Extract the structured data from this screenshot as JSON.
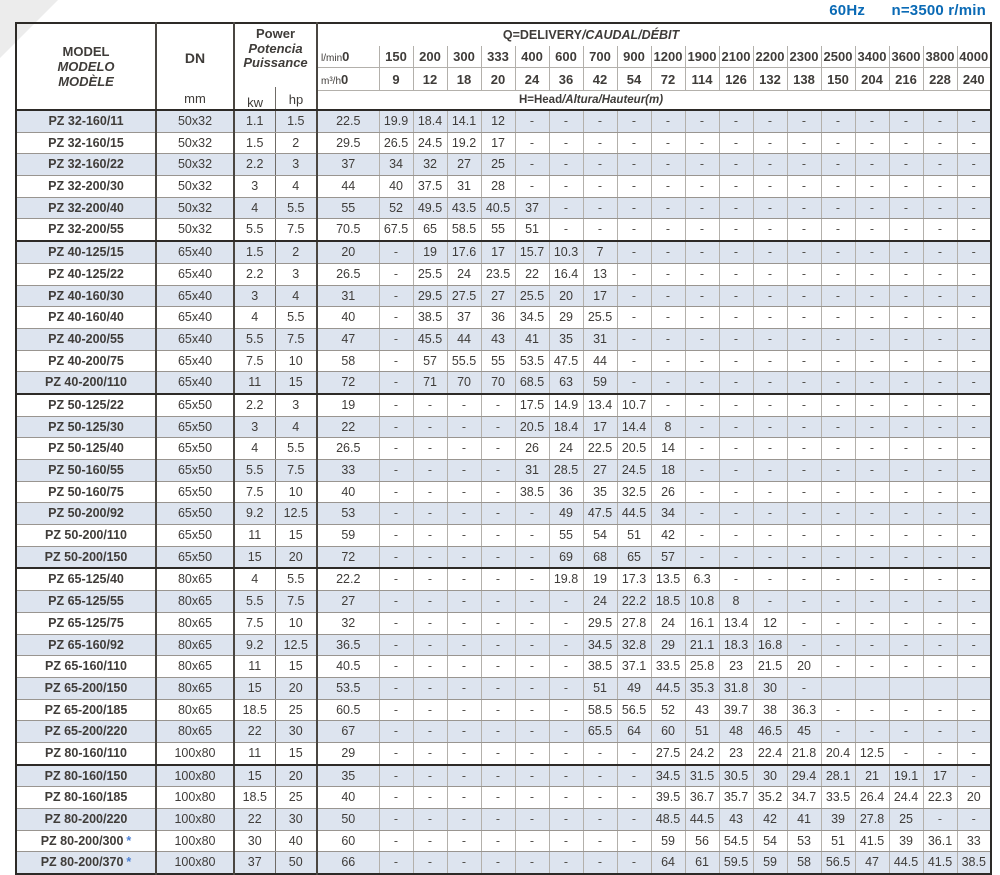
{
  "page": {
    "hz_label": "60Hz",
    "speed_label": "n=3500 r/min"
  },
  "table": {
    "model_header": [
      "MODEL",
      "MODELO",
      "MODÈLE"
    ],
    "dn_header": "DN",
    "dn_unit": "mm",
    "power_header": [
      "Power",
      "Potencia",
      "Puissance"
    ],
    "kw_label": "kw",
    "hp_label": "hp",
    "q_title": "Q=DELIVERY",
    "q_title_italic": "/CAUDAL/DÉBIT",
    "lmin_label": "l/min",
    "m3h_label": "m³/h",
    "lmin_values": [
      "0",
      "150",
      "200",
      "300",
      "333",
      "400",
      "600",
      "700",
      "900",
      "1200",
      "1900",
      "2100",
      "2200",
      "2300",
      "2500",
      "3400",
      "3600",
      "3800",
      "4000"
    ],
    "m3h_values": [
      "0",
      "9",
      "12",
      "18",
      "20",
      "24",
      "36",
      "42",
      "54",
      "72",
      "114",
      "126",
      "132",
      "138",
      "150",
      "204",
      "216",
      "228",
      "240"
    ],
    "head_title": "H=Head",
    "head_title_italic": "/Altura/Hauteur(m)",
    "group_ends": [
      5,
      12,
      20,
      29
    ],
    "rows": [
      {
        "model": "PZ 32-160/11",
        "star": false,
        "dn": "50x32",
        "kw": "1.1",
        "hp": "1.5",
        "heads": [
          "22.5",
          "19.9",
          "18.4",
          "14.1",
          "12",
          "-",
          "-",
          "-",
          "-",
          "-",
          "-",
          "-",
          "-",
          "-",
          "-",
          "-",
          "-",
          "-",
          "-"
        ]
      },
      {
        "model": "PZ 32-160/15",
        "star": false,
        "dn": "50x32",
        "kw": "1.5",
        "hp": "2",
        "heads": [
          "29.5",
          "26.5",
          "24.5",
          "19.2",
          "17",
          "-",
          "-",
          "-",
          "-",
          "-",
          "-",
          "-",
          "-",
          "-",
          "-",
          "-",
          "-",
          "-",
          "-"
        ]
      },
      {
        "model": "PZ 32-160/22",
        "star": false,
        "dn": "50x32",
        "kw": "2.2",
        "hp": "3",
        "heads": [
          "37",
          "34",
          "32",
          "27",
          "25",
          "-",
          "-",
          "-",
          "-",
          "-",
          "-",
          "-",
          "-",
          "-",
          "-",
          "-",
          "-",
          "-",
          "-"
        ]
      },
      {
        "model": "PZ 32-200/30",
        "star": false,
        "dn": "50x32",
        "kw": "3",
        "hp": "4",
        "heads": [
          "44",
          "40",
          "37.5",
          "31",
          "28",
          "-",
          "-",
          "-",
          "-",
          "-",
          "-",
          "-",
          "-",
          "-",
          "-",
          "-",
          "-",
          "-",
          "-"
        ]
      },
      {
        "model": "PZ 32-200/40",
        "star": false,
        "dn": "50x32",
        "kw": "4",
        "hp": "5.5",
        "heads": [
          "55",
          "52",
          "49.5",
          "43.5",
          "40.5",
          "37",
          "-",
          "-",
          "-",
          "-",
          "-",
          "-",
          "-",
          "-",
          "-",
          "-",
          "-",
          "-",
          "-"
        ]
      },
      {
        "model": "PZ 32-200/55",
        "star": false,
        "dn": "50x32",
        "kw": "5.5",
        "hp": "7.5",
        "heads": [
          "70.5",
          "67.5",
          "65",
          "58.5",
          "55",
          "51",
          "-",
          "-",
          "-",
          "-",
          "-",
          "-",
          "-",
          "-",
          "-",
          "-",
          "-",
          "-",
          "-"
        ]
      },
      {
        "model": "PZ 40-125/15",
        "star": false,
        "dn": "65x40",
        "kw": "1.5",
        "hp": "2",
        "heads": [
          "20",
          "-",
          "19",
          "17.6",
          "17",
          "15.7",
          "10.3",
          "7",
          "-",
          "-",
          "-",
          "-",
          "-",
          "-",
          "-",
          "-",
          "-",
          "-",
          "-"
        ]
      },
      {
        "model": "PZ 40-125/22",
        "star": false,
        "dn": "65x40",
        "kw": "2.2",
        "hp": "3",
        "heads": [
          "26.5",
          "-",
          "25.5",
          "24",
          "23.5",
          "22",
          "16.4",
          "13",
          "-",
          "-",
          "-",
          "-",
          "-",
          "-",
          "-",
          "-",
          "-",
          "-",
          "-"
        ]
      },
      {
        "model": "PZ 40-160/30",
        "star": false,
        "dn": "65x40",
        "kw": "3",
        "hp": "4",
        "heads": [
          "31",
          "-",
          "29.5",
          "27.5",
          "27",
          "25.5",
          "20",
          "17",
          "-",
          "-",
          "-",
          "-",
          "-",
          "-",
          "-",
          "-",
          "-",
          "-",
          "-"
        ]
      },
      {
        "model": "PZ 40-160/40",
        "star": false,
        "dn": "65x40",
        "kw": "4",
        "hp": "5.5",
        "heads": [
          "40",
          "-",
          "38.5",
          "37",
          "36",
          "34.5",
          "29",
          "25.5",
          "-",
          "-",
          "-",
          "-",
          "-",
          "-",
          "-",
          "-",
          "-",
          "-",
          "-"
        ]
      },
      {
        "model": "PZ 40-200/55",
        "star": false,
        "dn": "65x40",
        "kw": "5.5",
        "hp": "7.5",
        "heads": [
          "47",
          "-",
          "45.5",
          "44",
          "43",
          "41",
          "35",
          "31",
          "-",
          "-",
          "-",
          "-",
          "-",
          "-",
          "-",
          "-",
          "-",
          "-",
          "-"
        ]
      },
      {
        "model": "PZ 40-200/75",
        "star": false,
        "dn": "65x40",
        "kw": "7.5",
        "hp": "10",
        "heads": [
          "58",
          "-",
          "57",
          "55.5",
          "55",
          "53.5",
          "47.5",
          "44",
          "-",
          "-",
          "-",
          "-",
          "-",
          "-",
          "-",
          "-",
          "-",
          "-",
          "-"
        ]
      },
      {
        "model": "PZ 40-200/110",
        "star": false,
        "dn": "65x40",
        "kw": "11",
        "hp": "15",
        "heads": [
          "72",
          "-",
          "71",
          "70",
          "70",
          "68.5",
          "63",
          "59",
          "-",
          "-",
          "-",
          "-",
          "-",
          "-",
          "-",
          "-",
          "-",
          "-",
          "-"
        ]
      },
      {
        "model": "PZ 50-125/22",
        "star": false,
        "dn": "65x50",
        "kw": "2.2",
        "hp": "3",
        "heads": [
          "19",
          "-",
          "-",
          "-",
          "-",
          "17.5",
          "14.9",
          "13.4",
          "10.7",
          "-",
          "-",
          "-",
          "-",
          "-",
          "-",
          "-",
          "-",
          "-",
          "-"
        ]
      },
      {
        "model": "PZ 50-125/30",
        "star": false,
        "dn": "65x50",
        "kw": "3",
        "hp": "4",
        "heads": [
          "22",
          "-",
          "-",
          "-",
          "-",
          "20.5",
          "18.4",
          "17",
          "14.4",
          "8",
          "-",
          "-",
          "-",
          "-",
          "-",
          "-",
          "-",
          "-",
          "-"
        ]
      },
      {
        "model": "PZ 50-125/40",
        "star": false,
        "dn": "65x50",
        "kw": "4",
        "hp": "5.5",
        "heads": [
          "26.5",
          "-",
          "-",
          "-",
          "-",
          "26",
          "24",
          "22.5",
          "20.5",
          "14",
          "-",
          "-",
          "-",
          "-",
          "-",
          "-",
          "-",
          "-",
          "-"
        ]
      },
      {
        "model": "PZ 50-160/55",
        "star": false,
        "dn": "65x50",
        "kw": "5.5",
        "hp": "7.5",
        "heads": [
          "33",
          "-",
          "-",
          "-",
          "-",
          "31",
          "28.5",
          "27",
          "24.5",
          "18",
          "-",
          "-",
          "-",
          "-",
          "-",
          "-",
          "-",
          "-",
          "-"
        ]
      },
      {
        "model": "PZ 50-160/75",
        "star": false,
        "dn": "65x50",
        "kw": "7.5",
        "hp": "10",
        "heads": [
          "40",
          "-",
          "-",
          "-",
          "-",
          "38.5",
          "36",
          "35",
          "32.5",
          "26",
          "-",
          "-",
          "-",
          "-",
          "-",
          "-",
          "-",
          "-",
          "-"
        ]
      },
      {
        "model": "PZ 50-200/92",
        "star": false,
        "dn": "65x50",
        "kw": "9.2",
        "hp": "12.5",
        "heads": [
          "53",
          "-",
          "-",
          "-",
          "-",
          "-",
          "49",
          "47.5",
          "44.5",
          "34",
          "-",
          "-",
          "-",
          "-",
          "-",
          "-",
          "-",
          "-",
          "-"
        ]
      },
      {
        "model": "PZ 50-200/110",
        "star": false,
        "dn": "65x50",
        "kw": "11",
        "hp": "15",
        "heads": [
          "59",
          "-",
          "-",
          "-",
          "-",
          "-",
          "55",
          "54",
          "51",
          "42",
          "-",
          "-",
          "-",
          "-",
          "-",
          "-",
          "-",
          "-",
          "-"
        ]
      },
      {
        "model": "PZ 50-200/150",
        "star": false,
        "dn": "65x50",
        "kw": "15",
        "hp": "20",
        "heads": [
          "72",
          "-",
          "-",
          "-",
          "-",
          "-",
          "69",
          "68",
          "65",
          "57",
          "-",
          "-",
          "-",
          "-",
          "-",
          "-",
          "-",
          "-",
          "-"
        ]
      },
      {
        "model": "PZ 65-125/40",
        "star": false,
        "dn": "80x65",
        "kw": "4",
        "hp": "5.5",
        "heads": [
          "22.2",
          "-",
          "-",
          "-",
          "-",
          "-",
          "19.8",
          "19",
          "17.3",
          "13.5",
          "6.3",
          "-",
          "-",
          "-",
          "-",
          "-",
          "-",
          "-",
          "-"
        ]
      },
      {
        "model": "PZ 65-125/55",
        "star": false,
        "dn": "80x65",
        "kw": "5.5",
        "hp": "7.5",
        "heads": [
          "27",
          "-",
          "-",
          "-",
          "-",
          "-",
          "-",
          "24",
          "22.2",
          "18.5",
          "10.8",
          "8",
          "-",
          "-",
          "-",
          "-",
          "-",
          "-",
          "-"
        ]
      },
      {
        "model": "PZ 65-125/75",
        "star": false,
        "dn": "80x65",
        "kw": "7.5",
        "hp": "10",
        "heads": [
          "32",
          "-",
          "-",
          "-",
          "-",
          "-",
          "-",
          "29.5",
          "27.8",
          "24",
          "16.1",
          "13.4",
          "12",
          "-",
          "-",
          "-",
          "-",
          "-",
          "-"
        ]
      },
      {
        "model": "PZ 65-160/92",
        "star": false,
        "dn": "80x65",
        "kw": "9.2",
        "hp": "12.5",
        "heads": [
          "36.5",
          "-",
          "-",
          "-",
          "-",
          "-",
          "-",
          "34.5",
          "32.8",
          "29",
          "21.1",
          "18.3",
          "16.8",
          "-",
          "-",
          "-",
          "-",
          "-",
          "-"
        ]
      },
      {
        "model": "PZ 65-160/110",
        "star": false,
        "dn": "80x65",
        "kw": "11",
        "hp": "15",
        "heads": [
          "40.5",
          "-",
          "-",
          "-",
          "-",
          "-",
          "-",
          "38.5",
          "37.1",
          "33.5",
          "25.8",
          "23",
          "21.5",
          "20",
          "-",
          "-",
          "-",
          "-",
          "-"
        ]
      },
      {
        "model": "PZ 65-200/150",
        "star": false,
        "dn": "80x65",
        "kw": "15",
        "hp": "20",
        "heads": [
          "53.5",
          "-",
          "-",
          "-",
          "-",
          "-",
          "-",
          "51",
          "49",
          "44.5",
          "35.3",
          "31.8",
          "30",
          "-",
          "",
          "",
          "",
          "",
          ""
        ]
      },
      {
        "model": "PZ 65-200/185",
        "star": false,
        "dn": "80x65",
        "kw": "18.5",
        "hp": "25",
        "heads": [
          "60.5",
          "-",
          "-",
          "-",
          "-",
          "-",
          "-",
          "58.5",
          "56.5",
          "52",
          "43",
          "39.7",
          "38",
          "36.3",
          "-",
          "-",
          "-",
          "-",
          "-"
        ]
      },
      {
        "model": "PZ 65-200/220",
        "star": false,
        "dn": "80x65",
        "kw": "22",
        "hp": "30",
        "heads": [
          "67",
          "-",
          "-",
          "-",
          "-",
          "-",
          "-",
          "65.5",
          "64",
          "60",
          "51",
          "48",
          "46.5",
          "45",
          "-",
          "-",
          "-",
          "-",
          "-"
        ]
      },
      {
        "model": "PZ 80-160/110",
        "star": false,
        "dn": "100x80",
        "kw": "11",
        "hp": "15",
        "heads": [
          "29",
          "-",
          "-",
          "-",
          "-",
          "-",
          "-",
          "-",
          "-",
          "27.5",
          "24.2",
          "23",
          "22.4",
          "21.8",
          "20.4",
          "12.5",
          "-",
          "-",
          "-"
        ]
      },
      {
        "model": "PZ 80-160/150",
        "star": false,
        "dn": "100x80",
        "kw": "15",
        "hp": "20",
        "heads": [
          "35",
          "-",
          "-",
          "-",
          "-",
          "-",
          "-",
          "-",
          "-",
          "34.5",
          "31.5",
          "30.5",
          "30",
          "29.4",
          "28.1",
          "21",
          "19.1",
          "17",
          "-"
        ]
      },
      {
        "model": "PZ 80-160/185",
        "star": false,
        "dn": "100x80",
        "kw": "18.5",
        "hp": "25",
        "heads": [
          "40",
          "-",
          "-",
          "-",
          "-",
          "-",
          "-",
          "-",
          "-",
          "39.5",
          "36.7",
          "35.7",
          "35.2",
          "34.7",
          "33.5",
          "26.4",
          "24.4",
          "22.3",
          "20"
        ]
      },
      {
        "model": "PZ 80-200/220",
        "star": false,
        "dn": "100x80",
        "kw": "22",
        "hp": "30",
        "heads": [
          "50",
          "-",
          "-",
          "-",
          "-",
          "-",
          "-",
          "-",
          "-",
          "48.5",
          "44.5",
          "43",
          "42",
          "41",
          "39",
          "27.8",
          "25",
          "-",
          "-"
        ]
      },
      {
        "model": "PZ 80-200/300",
        "star": true,
        "dn": "100x80",
        "kw": "30",
        "hp": "40",
        "heads": [
          "60",
          "-",
          "-",
          "-",
          "-",
          "-",
          "-",
          "-",
          "-",
          "59",
          "56",
          "54.5",
          "54",
          "53",
          "51",
          "41.5",
          "39",
          "36.1",
          "33"
        ]
      },
      {
        "model": "PZ 80-200/370",
        "star": true,
        "dn": "100x80",
        "kw": "37",
        "hp": "50",
        "heads": [
          "66",
          "-",
          "-",
          "-",
          "-",
          "-",
          "-",
          "-",
          "-",
          "64",
          "61",
          "59.5",
          "59",
          "58",
          "56.5",
          "47",
          "44.5",
          "41.5",
          "38.5"
        ]
      }
    ],
    "colors": {
      "accent_blue": "#0a6ab5",
      "row_alt": "#dde4ef",
      "star_blue": "#4a7fd4"
    }
  }
}
